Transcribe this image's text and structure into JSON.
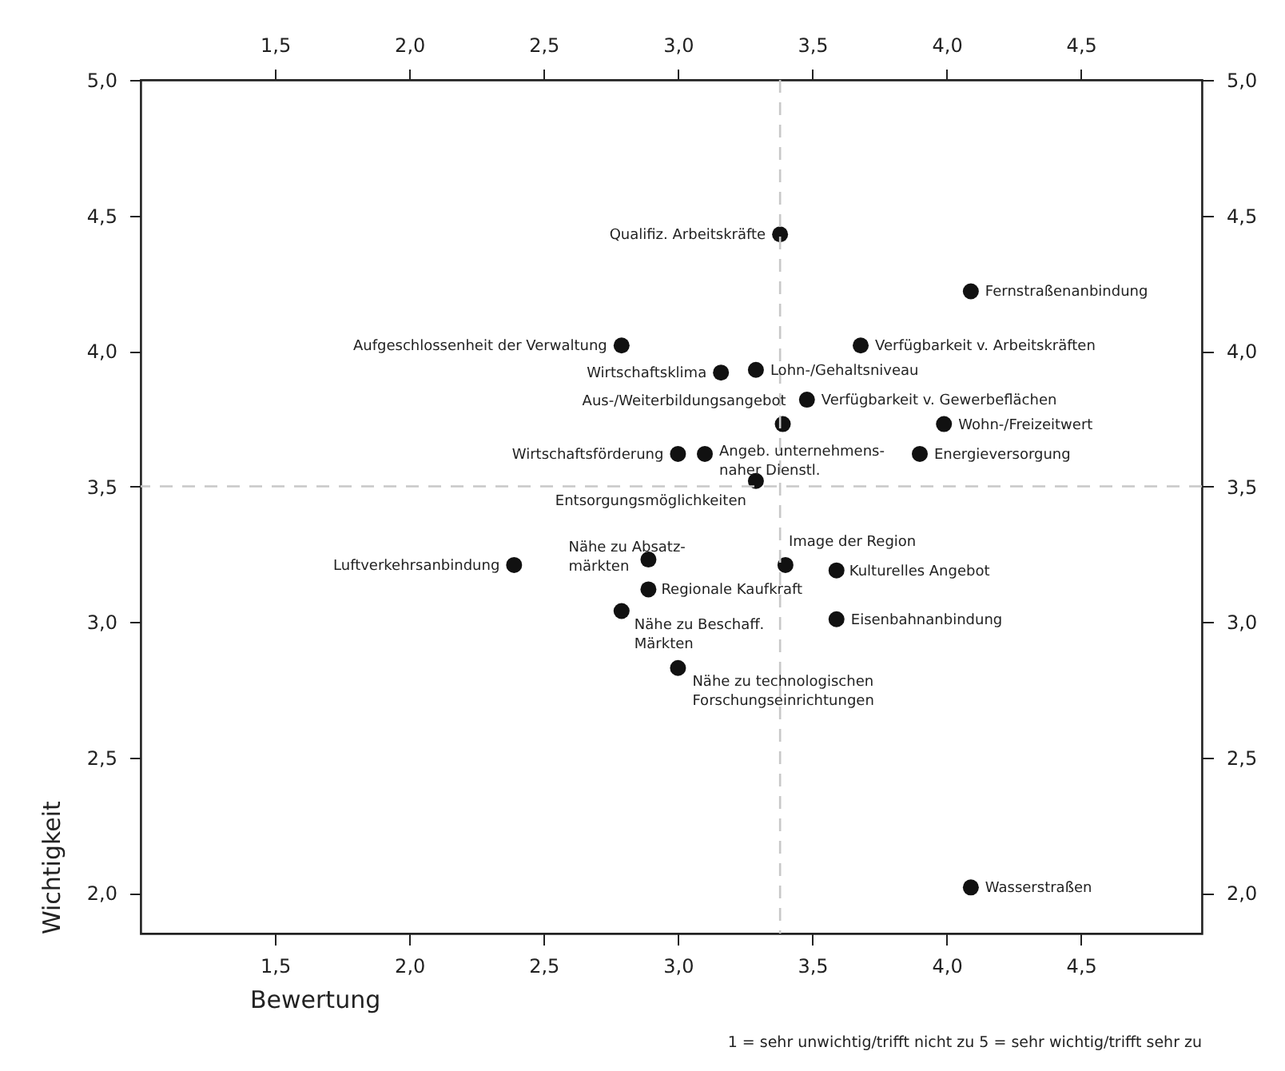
{
  "chart_data": {
    "type": "scatter",
    "xlabel": "Bewertung",
    "ylabel": "Wichtigkeit",
    "marker": "circle",
    "xlim": [
      1.0,
      4.95
    ],
    "ylim": [
      1.85,
      5.0
    ],
    "xticks": [
      {
        "value": 1.5,
        "label": "1,5"
      },
      {
        "value": 2.0,
        "label": "2,0"
      },
      {
        "value": 2.5,
        "label": "2,5"
      },
      {
        "value": 3.0,
        "label": "3,0"
      },
      {
        "value": 3.5,
        "label": "3,5"
      },
      {
        "value": 4.0,
        "label": "4,0"
      },
      {
        "value": 4.5,
        "label": "4,5"
      }
    ],
    "yticks": [
      {
        "value": 2.0,
        "label": "2,0"
      },
      {
        "value": 2.5,
        "label": "2,5"
      },
      {
        "value": 3.0,
        "label": "3,0"
      },
      {
        "value": 3.5,
        "label": "3,5"
      },
      {
        "value": 4.0,
        "label": "4,0"
      },
      {
        "value": 4.5,
        "label": "4,5"
      },
      {
        "value": 5.0,
        "label": "5,0"
      }
    ],
    "x2lim": [
      1.0,
      4.95
    ],
    "x2ticks": [
      {
        "value": 1.5,
        "label": "1,5"
      },
      {
        "value": 2.0,
        "label": "2,0"
      },
      {
        "value": 2.5,
        "label": "2,5"
      },
      {
        "value": 3.0,
        "label": "3,0"
      },
      {
        "value": 3.5,
        "label": "3,5"
      },
      {
        "value": 4.0,
        "label": "4,0"
      },
      {
        "value": 4.5,
        "label": "4,5"
      }
    ],
    "y2lim": [
      1.85,
      5.0
    ],
    "y2ticks": [
      {
        "value": 2.0,
        "label": "2,0"
      },
      {
        "value": 2.5,
        "label": "2,5"
      },
      {
        "value": 3.0,
        "label": "3,0"
      },
      {
        "value": 3.5,
        "label": "3,5"
      },
      {
        "value": 4.0,
        "label": "4,0"
      },
      {
        "value": 4.5,
        "label": "4,5"
      },
      {
        "value": 5.0,
        "label": "5,0"
      }
    ],
    "series": [
      {
        "color": "#111111",
        "x": [
          3.38,
          4.09,
          2.79,
          3.68,
          3.16,
          3.29,
          3.48,
          3.39,
          3.99,
          3.0,
          3.1,
          3.9,
          3.29,
          2.89,
          2.39,
          3.4,
          3.59,
          2.89,
          2.79,
          3.59,
          3.0,
          4.09
        ],
        "values": [
          4.43,
          4.22,
          4.02,
          4.02,
          3.92,
          3.93,
          3.82,
          3.73,
          3.73,
          3.62,
          3.62,
          3.62,
          3.52,
          3.23,
          3.21,
          3.21,
          3.19,
          3.12,
          3.04,
          3.01,
          2.83,
          2.02
        ]
      }
    ],
    "ref_lines": [
      {
        "axis": "x",
        "value": 3.38,
        "line_style": "dashed",
        "color": "#c8c8c8"
      },
      {
        "axis": "y",
        "value": 3.5,
        "line_style": "dashed",
        "color": "#c8c8c8"
      }
    ],
    "annotations": [
      {
        "text": "Qualifiz. Arbeitskräfte",
        "x": 3.38,
        "y": 4.43
      },
      {
        "text": "Fernstraßenanbindung",
        "x": 4.09,
        "y": 4.22
      },
      {
        "text": "Aufgeschlossenheit der Verwaltung",
        "x": 2.79,
        "y": 4.02
      },
      {
        "text": "Verfügbarkeit v. Arbeitskräften",
        "x": 3.68,
        "y": 4.02
      },
      {
        "text": "Wirtschaftsklima",
        "x": 3.16,
        "y": 3.92
      },
      {
        "text": "Lohn-/Gehaltsniveau",
        "x": 3.29,
        "y": 3.93
      },
      {
        "text": "Verfügbarkeit v. Gewerbeflächen",
        "x": 3.48,
        "y": 3.82
      },
      {
        "text": "Aus-/Weiterbildungsangebot",
        "x": 3.39,
        "y": 3.73
      },
      {
        "text": "Wohn-/Freizeitwert",
        "x": 3.99,
        "y": 3.73
      },
      {
        "text": "Wirtschaftsförderung",
        "x": 3.0,
        "y": 3.62
      },
      {
        "text": "Angeb. unternehmens-\nnaher Dienstl.",
        "x": 3.1,
        "y": 3.62
      },
      {
        "text": "Energieversorgung",
        "x": 3.9,
        "y": 3.62
      },
      {
        "text": "Entsorgungsmöglichkeiten",
        "x": 3.29,
        "y": 3.52
      },
      {
        "text": "Nähe zu Absatz-\nmärkten",
        "x": 2.89,
        "y": 3.23
      },
      {
        "text": "Luftverkehrsanbindung",
        "x": 2.39,
        "y": 3.21
      },
      {
        "text": "Image der Region",
        "x": 3.4,
        "y": 3.21
      },
      {
        "text": "Kulturelles Angebot",
        "x": 3.59,
        "y": 3.19
      },
      {
        "text": "Regionale Kaufkraft",
        "x": 2.89,
        "y": 3.12
      },
      {
        "text": "Nähe zu Beschaff.\nMärkten",
        "x": 2.79,
        "y": 3.04
      },
      {
        "text": "Eisenbahnanbindung",
        "x": 3.59,
        "y": 3.01
      },
      {
        "text": "Nähe zu technologischen\nForschungseinrichtungen",
        "x": 3.0,
        "y": 2.83
      },
      {
        "text": "Wasserstraßen",
        "x": 4.09,
        "y": 2.02
      },
      "1 = sehr unwichtig/trifft nicht zu  5 = sehr wichtig/trifft sehr zu"
    ]
  }
}
